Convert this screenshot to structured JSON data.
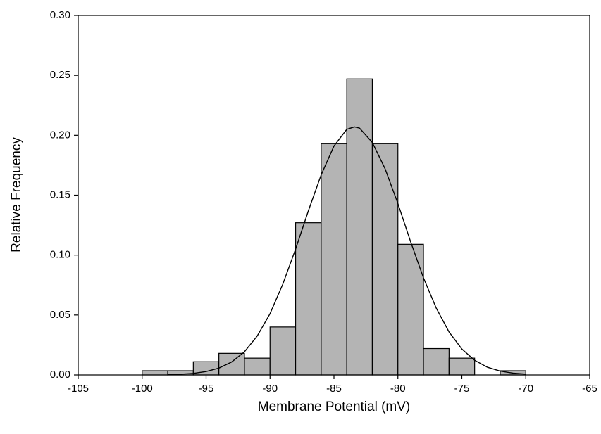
{
  "chart_data": {
    "type": "histogram",
    "x_label": "Membrane Potential (mV)",
    "y_label": "Relative Frequency",
    "bins": [
      -100,
      -98,
      -96,
      -94,
      -92,
      -90,
      -88,
      -86,
      -84,
      -82,
      -80,
      -78,
      -76,
      -74,
      -72,
      -70
    ],
    "values": [
      0.0035,
      0.0035,
      0.011,
      0.018,
      0.014,
      0.04,
      0.127,
      0.193,
      0.247,
      0.193,
      0.109,
      0.022,
      0.014,
      0,
      0.0035
    ],
    "color": "#b4b4b4",
    "fit": {
      "color": "#000000",
      "x": [
        -98,
        -97,
        -96,
        -95,
        -94,
        -93,
        -92,
        -91,
        -90,
        -89,
        -88,
        -87,
        -86,
        -85,
        -84,
        -83.4,
        -83,
        -82,
        -81,
        -80,
        -79,
        -78,
        -77,
        -76,
        -75,
        -74,
        -73,
        -72,
        -71,
        -70
      ],
      "values": [
        0.0002,
        0.0006,
        0.0013,
        0.0028,
        0.0057,
        0.0108,
        0.0193,
        0.0325,
        0.0511,
        0.0758,
        0.105,
        0.137,
        0.167,
        0.191,
        0.205,
        0.207,
        0.206,
        0.194,
        0.172,
        0.143,
        0.111,
        0.081,
        0.0557,
        0.0358,
        0.0216,
        0.0122,
        0.0064,
        0.0032,
        0.0015,
        0.0007
      ]
    },
    "xlim": [
      -105,
      -65
    ],
    "ylim": [
      0,
      0.3
    ],
    "xticks": [
      -105,
      -100,
      -95,
      -90,
      -85,
      -80,
      -75,
      -70,
      -65
    ],
    "yticks": [
      {
        "value": 0,
        "label": "0.00"
      },
      {
        "value": 0.05,
        "label": "0.05"
      },
      {
        "value": 0.1,
        "label": "0.10"
      },
      {
        "value": 0.15,
        "label": "0.15"
      },
      {
        "value": 0.2,
        "label": "0.20"
      },
      {
        "value": 0.25,
        "label": "0.25"
      },
      {
        "value": 0.3,
        "label": "0.30"
      }
    ]
  }
}
